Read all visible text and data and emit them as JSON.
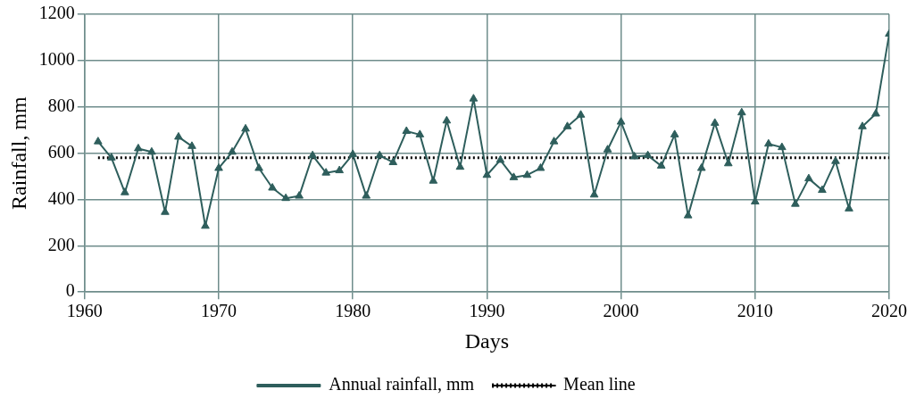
{
  "chart_data": {
    "type": "line",
    "xlabel": "Days",
    "ylabel": "Rainfall, mm",
    "xlim": [
      1960,
      2020
    ],
    "xticks": [
      1960,
      1970,
      1980,
      1990,
      2000,
      2010,
      2020
    ],
    "ylim": [
      0,
      1200
    ],
    "yticks": [
      0,
      200,
      400,
      600,
      800,
      1000,
      1200
    ],
    "grid": true,
    "legend": "bottom",
    "series": [
      {
        "name": "Annual rainfall, mm",
        "color": "#2e5e5c",
        "marker": "triangle",
        "line_style": "solid",
        "x": [
          1961,
          1962,
          1963,
          1964,
          1965,
          1966,
          1967,
          1968,
          1969,
          1970,
          1971,
          1972,
          1973,
          1974,
          1975,
          1976,
          1977,
          1978,
          1979,
          1980,
          1981,
          1982,
          1983,
          1984,
          1985,
          1986,
          1987,
          1988,
          1989,
          1990,
          1991,
          1992,
          1993,
          1994,
          1995,
          1996,
          1997,
          1998,
          1999,
          2000,
          2001,
          2002,
          2003,
          2004,
          2005,
          2006,
          2007,
          2008,
          2009,
          2010,
          2011,
          2012,
          2013,
          2014,
          2015,
          2016,
          2017,
          2018,
          2019,
          2020
        ],
        "values": [
          650,
          580,
          430,
          620,
          605,
          345,
          670,
          630,
          285,
          535,
          605,
          705,
          535,
          450,
          405,
          415,
          590,
          515,
          525,
          595,
          415,
          590,
          560,
          695,
          680,
          480,
          740,
          540,
          835,
          505,
          570,
          495,
          505,
          535,
          650,
          715,
          765,
          420,
          615,
          735,
          585,
          590,
          545,
          680,
          330,
          535,
          730,
          555,
          775,
          390,
          640,
          625,
          380,
          490,
          440,
          565,
          360,
          715,
          770,
          1115
        ]
      },
      {
        "name": "Mean line",
        "color": "#000000",
        "marker": "none",
        "line_style": "dotted",
        "x": [
          1961,
          2020
        ],
        "values": [
          580,
          580
        ]
      }
    ]
  }
}
